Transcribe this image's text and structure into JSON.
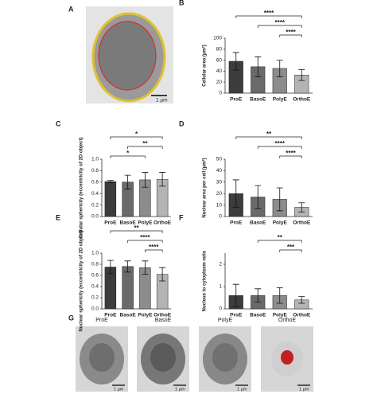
{
  "chart_data": [
    {
      "type": "bar",
      "label": "B",
      "ylabel": "Cellular area (µm²)",
      "categories": [
        "ProE",
        "BasoE",
        "PolyE",
        "OrthoE"
      ],
      "values": [
        58,
        48,
        45,
        33
      ],
      "errors": [
        16,
        18,
        15,
        10
      ],
      "colors": [
        "#3c3c3c",
        "#6a6a6a",
        "#8c8c8c",
        "#b4b4b4"
      ],
      "ylim": [
        0,
        100
      ],
      "yticks": [
        0,
        20,
        40,
        60,
        80,
        100
      ],
      "annotations": [
        {
          "text": "****",
          "from": "PolyE",
          "to": "OrthoE"
        },
        {
          "text": "****",
          "from": "BasoE",
          "to": "OrthoE"
        },
        {
          "text": "****",
          "from": "ProE",
          "to": "OrthoE"
        }
      ]
    },
    {
      "type": "bar",
      "label": "C",
      "ylabel": "Cellular sphericity (eccentricity of 2D object)",
      "categories": [
        "ProE",
        "BasoE",
        "PolyE",
        "OrthoE"
      ],
      "values": [
        0.61,
        0.6,
        0.64,
        0.65
      ],
      "errors": [
        0.02,
        0.12,
        0.13,
        0.12
      ],
      "colors": [
        "#3c3c3c",
        "#6a6a6a",
        "#8c8c8c",
        "#b4b4b4"
      ],
      "ylim": [
        0,
        1
      ],
      "yticks": [
        {
          "value": 0,
          "label": "0.0"
        },
        0.2,
        0.4,
        0.6,
        0.8,
        {
          "value": 1,
          "label": "1.0"
        }
      ],
      "annotations": [
        {
          "text": "*",
          "from": "ProE",
          "to": "PolyE"
        },
        {
          "text": "**",
          "from": "BasoE",
          "to": "OrthoE"
        },
        {
          "text": "*",
          "from": "ProE",
          "to": "OrthoE"
        }
      ]
    },
    {
      "type": "bar",
      "label": "D",
      "ylabel": "Nuclear area per cell (µm²)",
      "categories": [
        "ProE",
        "BasoE",
        "PolyE",
        "OrthoE"
      ],
      "values": [
        20,
        17,
        15,
        8
      ],
      "errors": [
        12,
        10,
        10,
        4
      ],
      "colors": [
        "#3c3c3c",
        "#6a6a6a",
        "#8c8c8c",
        "#b4b4b4"
      ],
      "ylim": [
        0,
        50
      ],
      "yticks": [
        0,
        10,
        20,
        30,
        40,
        50
      ],
      "annotations": [
        {
          "text": "****",
          "from": "PolyE",
          "to": "OrthoE"
        },
        {
          "text": "****",
          "from": "BasoE",
          "to": "OrthoE"
        },
        {
          "text": "**",
          "from": "ProE",
          "to": "OrthoE"
        }
      ]
    },
    {
      "type": "bar",
      "label": "E",
      "ylabel": "Nuclear sphericity (eccentricity of 2D object)",
      "categories": [
        "ProE",
        "BasoE",
        "PolyE",
        "OrthoE"
      ],
      "values": [
        0.75,
        0.76,
        0.74,
        0.62
      ],
      "errors": [
        0.12,
        0.1,
        0.12,
        0.12
      ],
      "colors": [
        "#3c3c3c",
        "#6a6a6a",
        "#8c8c8c",
        "#b4b4b4"
      ],
      "ylim": [
        0,
        1
      ],
      "yticks": [
        {
          "value": 0,
          "label": "0.0"
        },
        0.2,
        0.4,
        0.6,
        0.8,
        {
          "value": 1,
          "label": "1.0"
        }
      ],
      "annotations": [
        {
          "text": "****",
          "from": "PolyE",
          "to": "OrthoE"
        },
        {
          "text": "****",
          "from": "BasoE",
          "to": "OrthoE"
        },
        {
          "text": "**",
          "from": "ProE",
          "to": "OrthoE"
        }
      ]
    },
    {
      "type": "bar",
      "label": "F",
      "ylabel": "Nucleus to cytoplasm ratio",
      "categories": [
        "ProE",
        "BasoE",
        "PolyE",
        "OrthoE"
      ],
      "values": [
        0.6,
        0.6,
        0.6,
        0.4
      ],
      "errors": [
        0.5,
        0.3,
        0.35,
        0.15
      ],
      "colors": [
        "#3c3c3c",
        "#6a6a6a",
        "#8c8c8c",
        "#b4b4b4"
      ],
      "ylim": [
        0,
        2.5
      ],
      "yticks": [
        0,
        1,
        2
      ],
      "annotations": [
        {
          "text": "***",
          "from": "PolyE",
          "to": "OrthoE"
        },
        {
          "text": "**",
          "from": "BasoE",
          "to": "OrthoE"
        }
      ]
    }
  ],
  "figure": {
    "panel_a": {
      "label": "A",
      "scale": "1 µm"
    },
    "panel_g": {
      "label": "G",
      "images": [
        {
          "title": "ProE",
          "scale": "1 µm"
        },
        {
          "title": "BasoE",
          "scale": "1 µm"
        },
        {
          "title": "PolyE",
          "scale": "1 µm"
        },
        {
          "title": "OrthoE",
          "scale": "1 µm"
        }
      ]
    }
  }
}
